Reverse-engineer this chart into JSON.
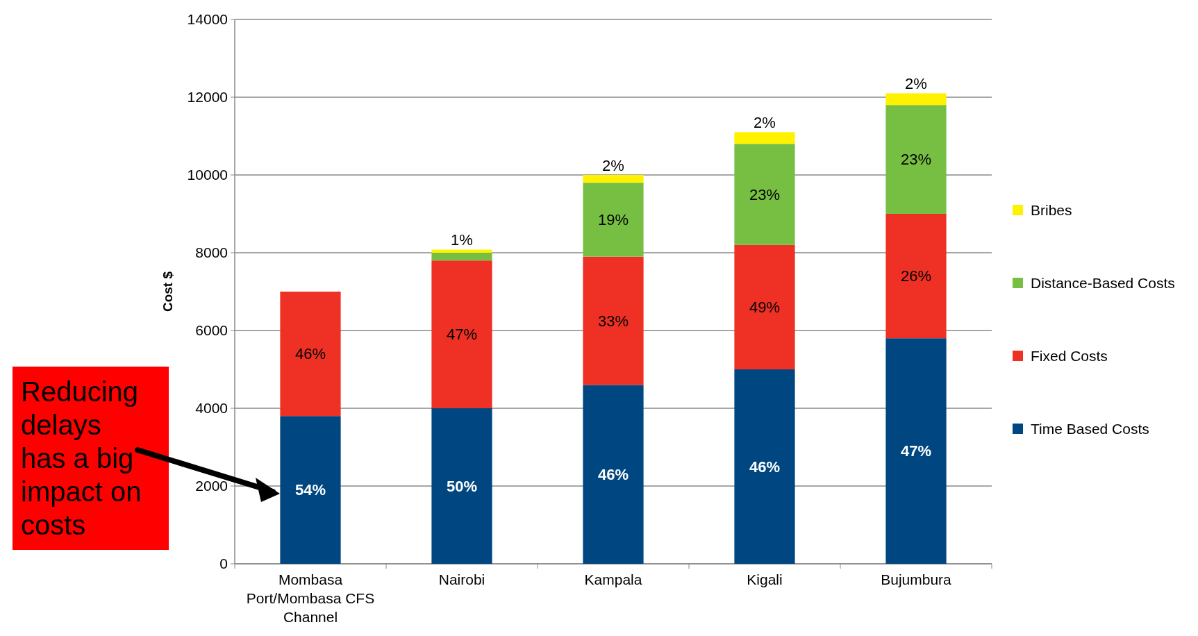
{
  "chart_data": {
    "type": "bar",
    "stacked": true,
    "ylabel": "Cost $",
    "categories": [
      "Mombasa Port/Mombasa CFS Channel",
      "Nairobi",
      "Kampala",
      "Kigali",
      "Bujumbura"
    ],
    "series": [
      {
        "name": "Time Based Costs",
        "color": "#004680",
        "values": [
          3800,
          4000,
          4600,
          5000,
          5800
        ]
      },
      {
        "name": "Fixed Costs",
        "color": "#ee3124",
        "values": [
          3200,
          3800,
          3300,
          3200,
          3200
        ]
      },
      {
        "name": "Distance-Based Costs",
        "color": "#77bf43",
        "values": [
          0,
          200,
          1900,
          2600,
          2800
        ]
      },
      {
        "name": "Bribes",
        "color": "#fff200",
        "values": [
          0,
          80,
          200,
          300,
          300
        ]
      }
    ],
    "ylim": [
      0,
      14000
    ],
    "yticks": [
      0,
      2000,
      4000,
      6000,
      8000,
      10000,
      12000,
      14000
    ],
    "grid": "y",
    "legend": "right",
    "annotations": [
      "Reducing delays has a big impact on costs",
      "54%",
      "46%",
      "50%",
      "47%",
      "1%",
      "46%",
      "33%",
      "19%",
      "2%",
      "46%",
      "49%",
      "23%",
      "2%",
      "47%",
      "26%",
      "23%",
      "2%"
    ]
  }
}
